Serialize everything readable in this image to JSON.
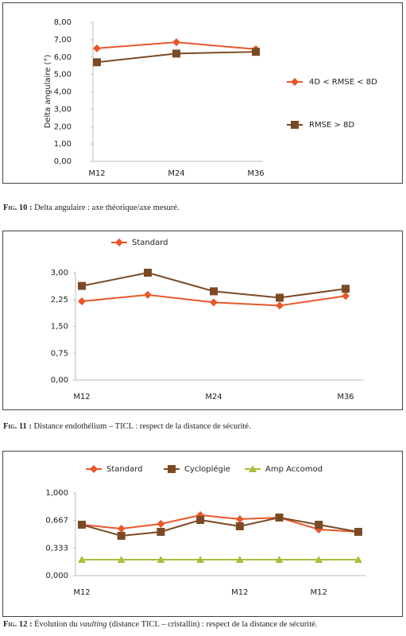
{
  "chart_data": [
    {
      "type": "line",
      "ylabel": "Delta angulaire (°)",
      "categories": [
        "M12",
        "M24",
        "M36"
      ],
      "ylim": [
        0,
        8
      ],
      "yticks": [
        {
          "value": 0,
          "label": "0,00"
        },
        {
          "value": 1,
          "label": "1,00"
        },
        {
          "value": 2,
          "label": "2,00"
        },
        {
          "value": 3,
          "label": "3,00"
        },
        {
          "value": 4,
          "label": "4,00"
        },
        {
          "value": 5,
          "label": "5,00"
        },
        {
          "value": 6,
          "label": "6,00"
        },
        {
          "value": 7,
          "label": "7,00"
        },
        {
          "value": 8,
          "label": "8,00"
        }
      ],
      "series": [
        {
          "name": "4D < RMSE < 8D",
          "color": "#e8572a",
          "marker": "diamond",
          "values": [
            6.5,
            6.85,
            6.45
          ]
        },
        {
          "name": "RMSE > 8D",
          "color": "#7b4a24",
          "marker": "square",
          "values": [
            5.7,
            6.2,
            6.3
          ]
        }
      ],
      "legend": "right",
      "caption_label": "Fig. 10 :",
      "caption": [
        "Delta angulaire : axe théorique/axe mesuré."
      ]
    },
    {
      "type": "line",
      "categories": [
        "M12",
        null,
        "M24",
        null,
        "M36"
      ],
      "ylim": [
        0,
        3
      ],
      "yticks": [
        {
          "value": 0,
          "label": "0,00"
        },
        {
          "value": 0.75,
          "label": "0,75"
        },
        {
          "value": 1.5,
          "label": "1,50"
        },
        {
          "value": 2.25,
          "label": "2,25"
        },
        {
          "value": 3,
          "label": "3,00"
        }
      ],
      "series": [
        {
          "name": "Standard",
          "color": "#e8572a",
          "marker": "diamond",
          "values": [
            2.2,
            2.38,
            2.17,
            2.08,
            2.35
          ]
        },
        {
          "color": "#7b4a24",
          "marker": "square",
          "values": [
            2.63,
            3.0,
            2.48,
            2.3,
            2.55
          ]
        }
      ],
      "legend": "top",
      "caption_label": "Fig. 11 :",
      "caption": [
        "Distance endothélium – TICL : respect de la distance de sécurité."
      ]
    },
    {
      "type": "line",
      "categories": [
        "M12",
        null,
        null,
        null,
        "M12",
        null,
        "M12",
        null
      ],
      "ylim": [
        0,
        1
      ],
      "yticks": [
        {
          "value": 0,
          "label": "0,000"
        },
        {
          "value": 0.333,
          "label": "0,333"
        },
        {
          "value": 0.667,
          "label": "0,667"
        },
        {
          "value": 1,
          "label": "1,000"
        }
      ],
      "series": [
        {
          "name": "Standard",
          "color": "#e8572a",
          "marker": "diamond",
          "values": [
            0.615,
            0.567,
            0.625,
            0.731,
            0.683,
            0.702,
            0.558,
            0.529
          ]
        },
        {
          "name": "Cycloplégie",
          "color": "#7b4a24",
          "marker": "square",
          "values": [
            0.615,
            0.481,
            0.529,
            0.673,
            0.596,
            0.702,
            0.615,
            0.529
          ]
        },
        {
          "name": "Amp Accomod",
          "color": "#a5c13a",
          "marker": "triangle",
          "values": [
            0.192,
            0.192,
            0.192,
            0.192,
            0.192,
            0.192,
            0.192,
            0.192
          ]
        }
      ],
      "legend": "top",
      "caption_label": "Fig. 12 :",
      "caption": [
        "Évolution du ",
        "vaulting",
        " (distance TICL – cristallin) : respect de la distance de sécurité."
      ]
    }
  ]
}
